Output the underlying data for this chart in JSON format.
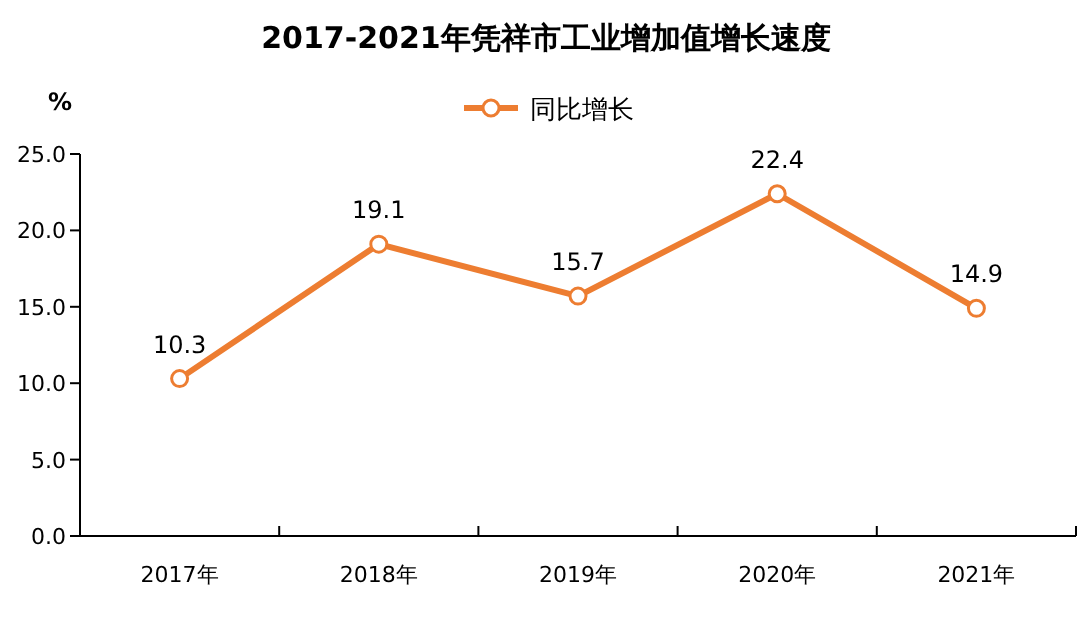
{
  "chart_data": {
    "type": "line",
    "title": "2017-2021年凭祥市工业增加值增长速度",
    "ylabel": "%",
    "categories": [
      "2017年",
      "2018年",
      "2019年",
      "2020年",
      "2021年"
    ],
    "series": [
      {
        "name": "同比增长",
        "color": "#ed7d31",
        "values": [
          10.3,
          19.1,
          15.7,
          22.4,
          14.9
        ]
      }
    ],
    "ylim": [
      0,
      25
    ],
    "yticks": [
      {
        "value": 0,
        "label": "0.0"
      },
      {
        "value": 5,
        "label": "5.0"
      },
      {
        "value": 10,
        "label": "10.0"
      },
      {
        "value": 15,
        "label": "15.0"
      },
      {
        "value": 20,
        "label": "20.0"
      },
      {
        "value": 25,
        "label": "25.0"
      }
    ],
    "grid": false,
    "legend": "top",
    "marker": "circle",
    "line_style": "solid",
    "data_labels": true
  }
}
